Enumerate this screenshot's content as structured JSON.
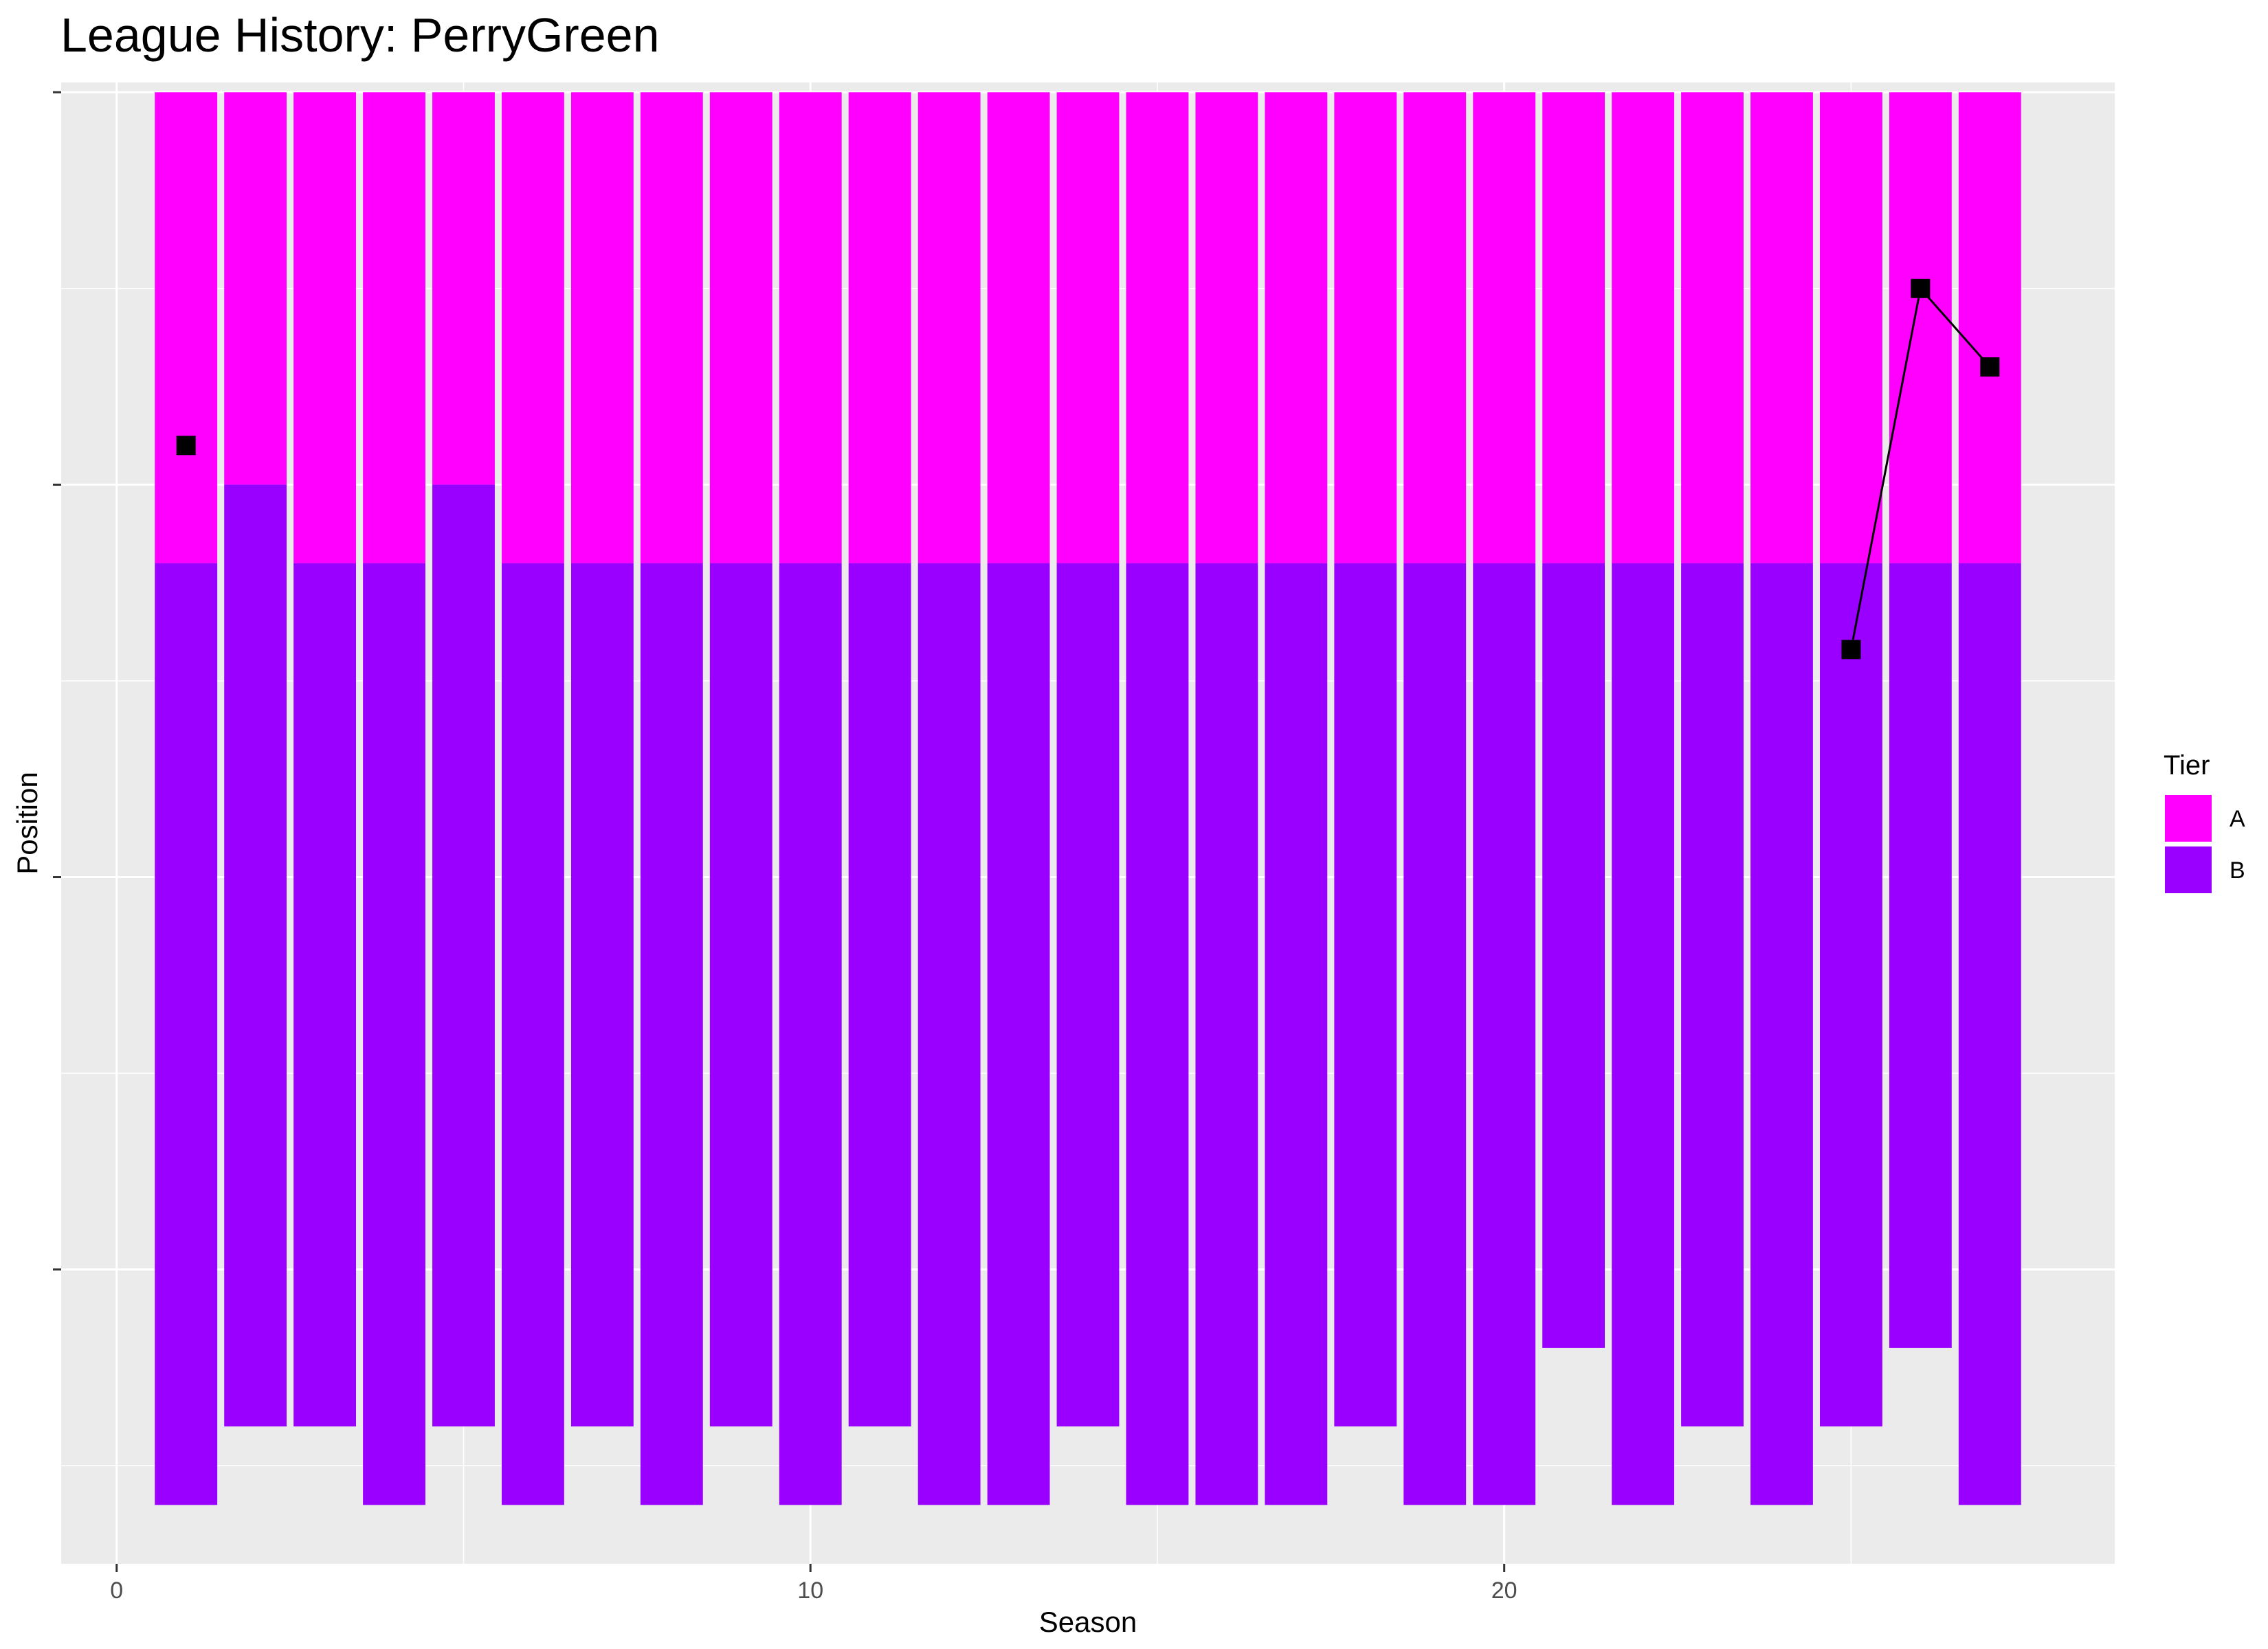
{
  "chart_data": {
    "type": "bar",
    "title": "League History: PerryGreen",
    "xlabel": "Season",
    "ylabel": "Position",
    "xlim": [
      -0.8,
      28.8
    ],
    "ylim": [
      0,
      37.75
    ],
    "x_ticks": [
      0,
      10,
      20
    ],
    "x_tick_labels": [
      "0",
      "10",
      "20"
    ],
    "y_ticks": [
      7.5,
      17.5,
      27.5,
      37.5
    ],
    "y_tick_labels": [
      "",
      "",
      "",
      ""
    ],
    "legend": {
      "title": "Tier",
      "position": "right",
      "entries": [
        "A",
        "B"
      ]
    },
    "colors": {
      "A": "#ff00ff",
      "B": "#9900ff",
      "panel": "#ebebeb",
      "grid": "#ffffff",
      "line": "#000000"
    },
    "seasons": [
      1,
      2,
      3,
      4,
      5,
      6,
      7,
      8,
      9,
      10,
      11,
      12,
      13,
      14,
      15,
      16,
      17,
      18,
      19,
      20,
      21,
      22,
      23,
      24,
      25,
      26,
      27
    ],
    "series": [
      {
        "name": "A",
        "base": [
          25.5,
          27.5,
          25.5,
          25.5,
          27.5,
          25.5,
          25.5,
          25.5,
          25.5,
          25.5,
          25.5,
          25.5,
          25.5,
          25.5,
          25.5,
          25.5,
          25.5,
          25.5,
          25.5,
          25.5,
          25.5,
          25.5,
          25.5,
          25.5,
          25.5,
          25.5,
          25.5
        ],
        "top": [
          37.5,
          37.5,
          37.5,
          37.5,
          37.5,
          37.5,
          37.5,
          37.5,
          37.5,
          37.5,
          37.5,
          37.5,
          37.5,
          37.5,
          37.5,
          37.5,
          37.5,
          37.5,
          37.5,
          37.5,
          37.5,
          37.5,
          37.5,
          37.5,
          37.5,
          37.5,
          37.5
        ]
      },
      {
        "name": "B",
        "base": [
          1.5,
          3.5,
          3.5,
          1.5,
          3.5,
          1.5,
          3.5,
          1.5,
          3.5,
          1.5,
          3.5,
          1.5,
          1.5,
          3.5,
          1.5,
          1.5,
          1.5,
          3.5,
          1.5,
          1.5,
          5.5,
          1.5,
          3.5,
          1.5,
          3.5,
          5.5,
          1.5
        ],
        "top": [
          25.5,
          27.5,
          25.5,
          25.5,
          27.5,
          25.5,
          25.5,
          25.5,
          25.5,
          25.5,
          25.5,
          25.5,
          25.5,
          25.5,
          25.5,
          25.5,
          25.5,
          25.5,
          25.5,
          25.5,
          25.5,
          25.5,
          25.5,
          25.5,
          25.5,
          25.5,
          25.5
        ]
      }
    ],
    "position_points": [
      {
        "season": 1,
        "position": 28.5
      },
      {
        "season": 25,
        "position": 23.3
      },
      {
        "season": 26,
        "position": 32.5
      },
      {
        "season": 27,
        "position": 30.5
      }
    ],
    "line_segments": [
      [
        25,
        26
      ],
      [
        26,
        27
      ]
    ]
  }
}
